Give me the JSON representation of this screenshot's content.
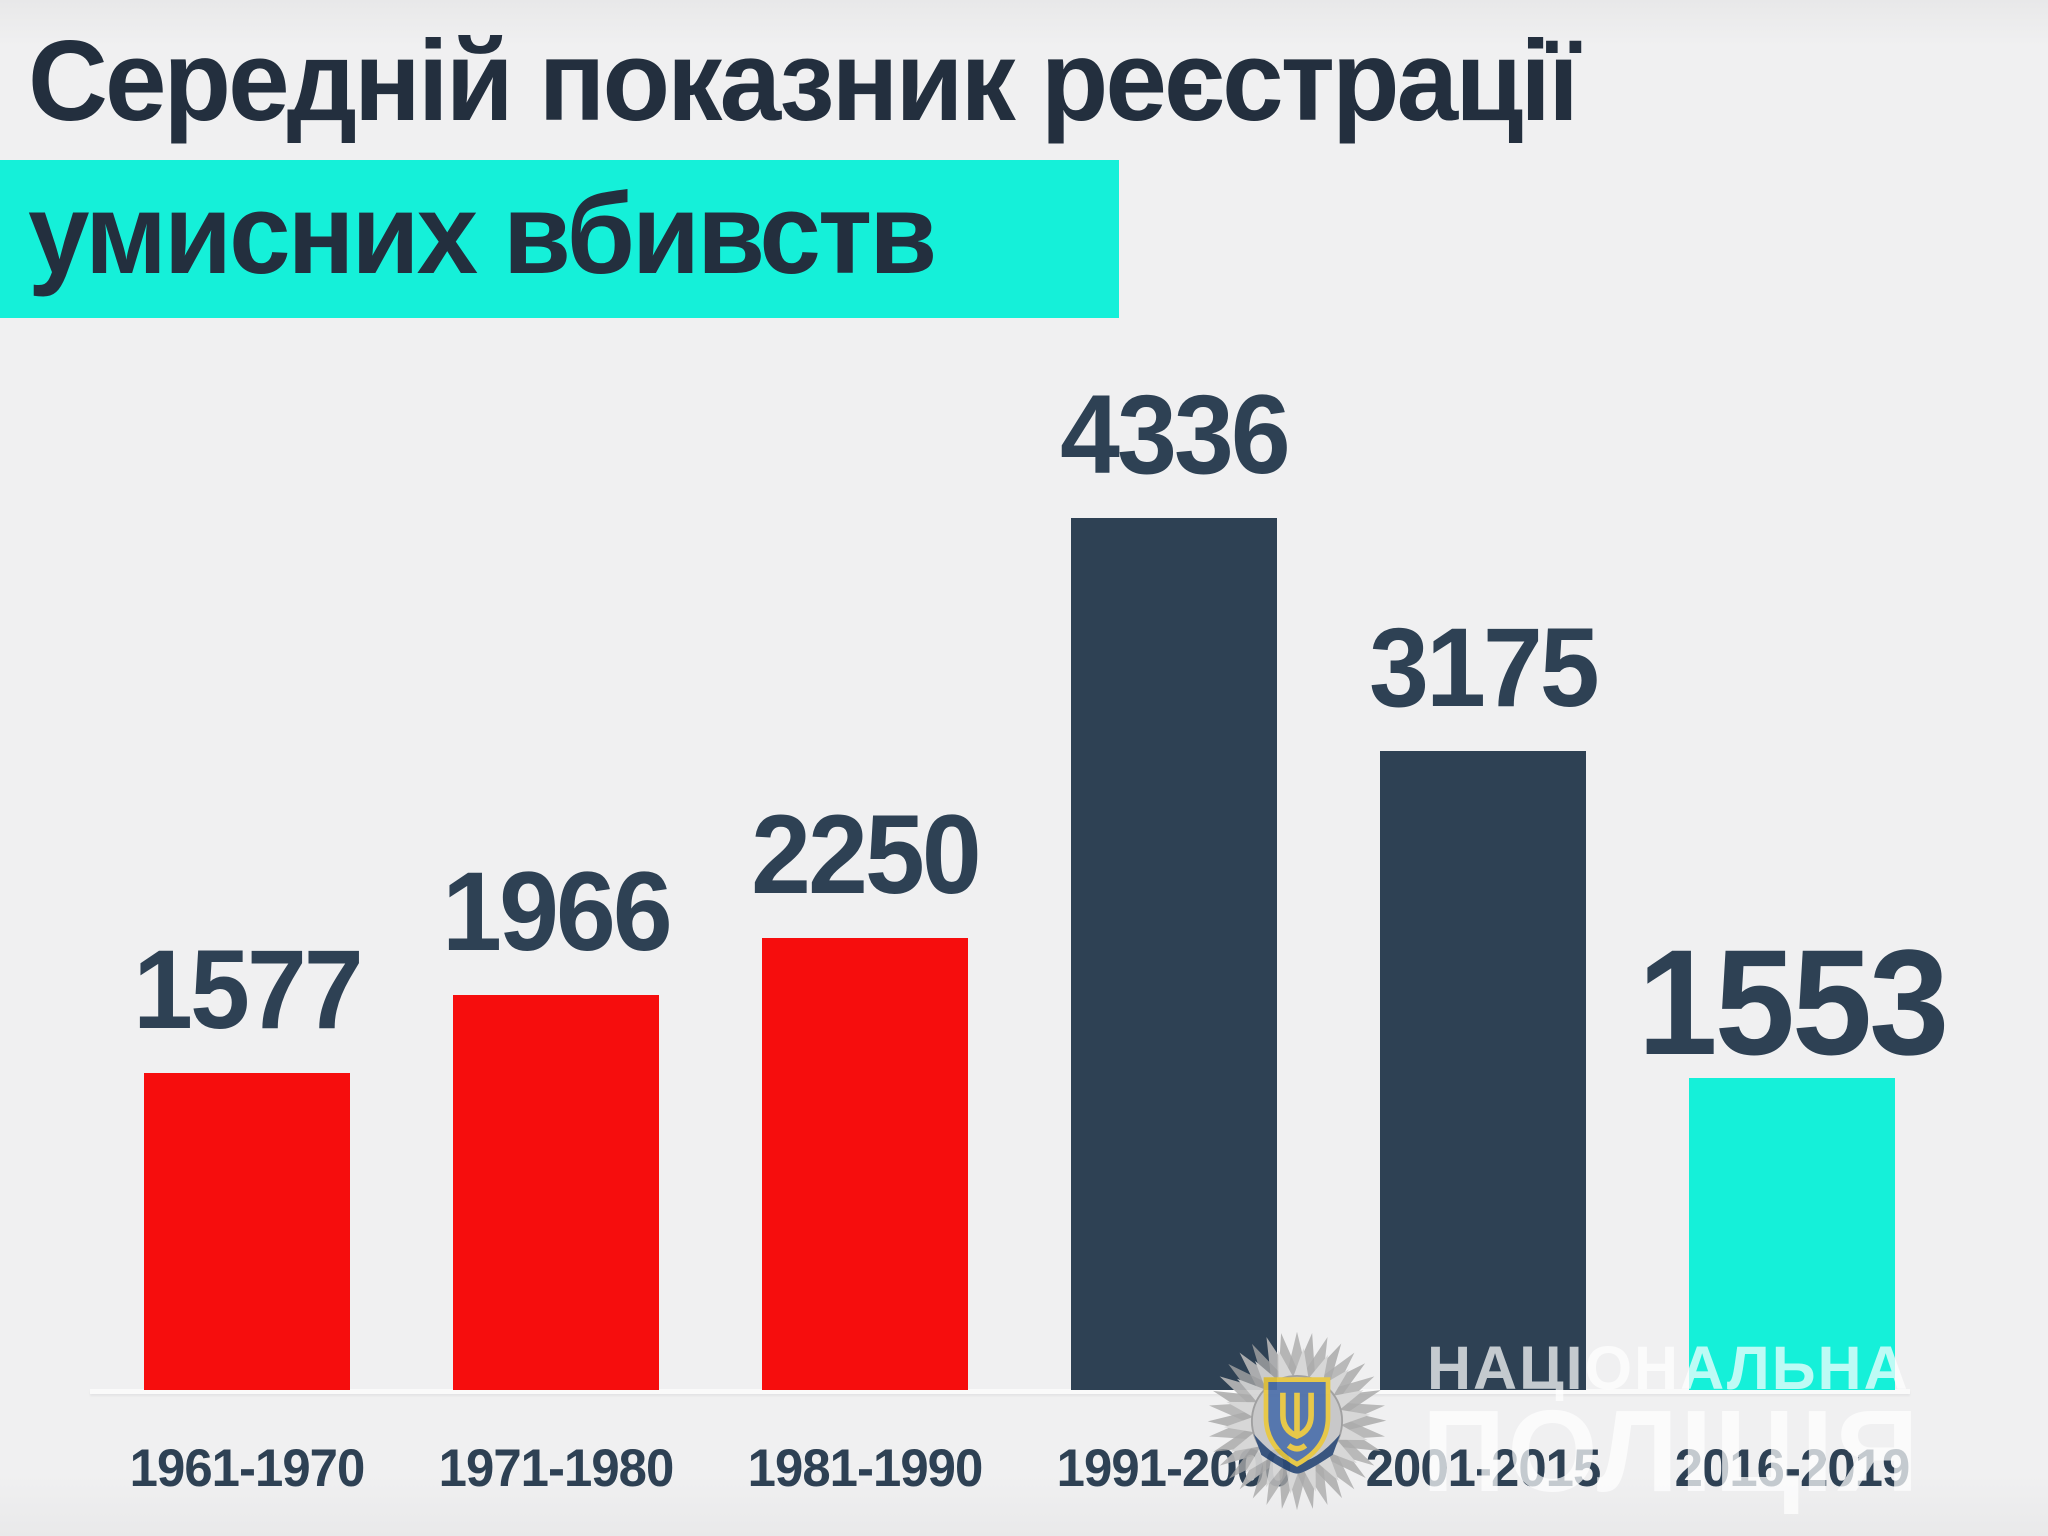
{
  "title": {
    "line1": "Середній показник реєстрації",
    "line2": "умисних вбивств"
  },
  "chart_data": {
    "type": "bar",
    "title": "Середній показник реєстрації умисних вбивств",
    "categories": [
      "1961-1970",
      "1971-1980",
      "1981-1990",
      "1991-2000",
      "2001-2015",
      "2016-2019"
    ],
    "values": [
      1577,
      1966,
      2250,
      4336,
      3175,
      1553
    ],
    "bar_colors": [
      "#f60d0d",
      "#f60d0d",
      "#f60d0d",
      "#2e4154",
      "#2e4154",
      "#15f0d9"
    ],
    "value_labels": [
      1577,
      1966,
      2250,
      4336,
      3175,
      1553
    ],
    "xlabel": "",
    "ylabel": "",
    "ylim": [
      0,
      4336
    ],
    "grid": false,
    "legend": false
  },
  "watermark": {
    "line1": "НАЦІОНАЛЬНА",
    "line2": "ПОЛІЦІЯ",
    "badge": "national-police-star-badge-with-trident"
  },
  "colors": {
    "background": "#f0f0f1",
    "title_text": "#232f3e",
    "label_text": "#2e4154",
    "highlight_cyan": "#15f0d9",
    "bar_red": "#f60d0d",
    "bar_dark_slate": "#2e4154",
    "bar_cyan": "#15f0d9",
    "axis_line": "#fafafa",
    "watermark_white": "rgba(255,255,255,0.72)",
    "badge_silver": "#bfbfbf",
    "badge_shield_blue": "#4b6ea9",
    "badge_trident_yellow": "#e7c63d"
  }
}
